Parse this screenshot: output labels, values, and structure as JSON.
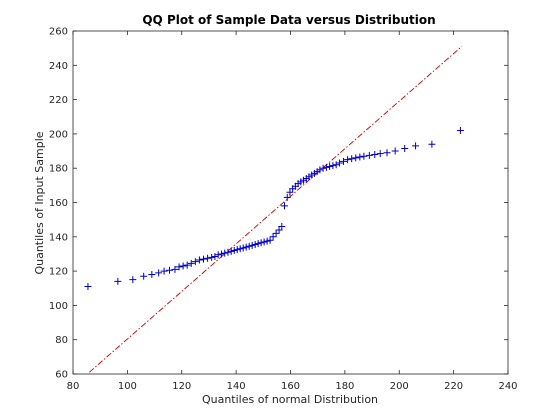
{
  "chart_data": {
    "type": "scatter",
    "title": "QQ Plot of Sample Data versus Distribution",
    "xlabel": "Quantiles of normal Distribution",
    "ylabel": "Quantiles of Input Sample",
    "xlim": [
      80,
      240
    ],
    "ylim": [
      60,
      260
    ],
    "xticks": [
      80,
      100,
      120,
      140,
      160,
      180,
      200,
      220,
      240
    ],
    "yticks": [
      60,
      80,
      100,
      120,
      140,
      160,
      180,
      200,
      220,
      240,
      260
    ],
    "grid": false,
    "legend": "none",
    "series": [
      {
        "marker": "+",
        "color": "#0000cc",
        "x": [
          85.5,
          96.5,
          102,
          106,
          109,
          111.5,
          113.5,
          115.5,
          117.5,
          119,
          120.5,
          122,
          123.5,
          125,
          126.5,
          128,
          129.5,
          131,
          132.2,
          133.4,
          134.6,
          135.8,
          137,
          138.2,
          139.3,
          140.4,
          141.5,
          142.6,
          143.7,
          144.8,
          145.9,
          147,
          148.1,
          149.2,
          150.3,
          151.4,
          152.5,
          153.6,
          154.7,
          155.8,
          156.8,
          157.8,
          158.8,
          159.8,
          160.8,
          161.8,
          162.8,
          163.8,
          164.8,
          165.8,
          166.8,
          167.8,
          168.8,
          169.8,
          170.8,
          172,
          173.2,
          174.4,
          175.6,
          176.8,
          178,
          179.5,
          181,
          182.5,
          184,
          185.5,
          187,
          189,
          191,
          193,
          195.5,
          198.5,
          202,
          206,
          212,
          222.5
        ],
        "y": [
          111,
          114,
          115,
          117,
          118,
          119,
          120,
          120.5,
          121,
          122.5,
          123,
          123.5,
          124.5,
          125.5,
          126.5,
          127,
          127.5,
          128,
          128.5,
          129.5,
          130,
          130.5,
          131,
          131.5,
          132,
          132.5,
          133,
          133.5,
          134,
          134.5,
          135,
          135.5,
          136,
          136.5,
          137,
          137.5,
          138,
          140,
          142,
          144,
          146,
          158,
          163,
          166,
          168,
          169.5,
          171,
          172,
          173,
          174,
          175,
          176,
          177,
          178,
          179,
          180,
          180.5,
          181,
          181.5,
          182,
          183,
          184,
          185,
          185.5,
          186,
          186.5,
          187,
          187.5,
          188,
          188.5,
          189,
          190,
          191.5,
          193,
          194,
          202
        ]
      }
    ],
    "reference_line": {
      "style": "dash-dot",
      "color": "#cc0000",
      "x": [
        86,
        223
      ],
      "y": [
        61,
        251
      ]
    }
  }
}
